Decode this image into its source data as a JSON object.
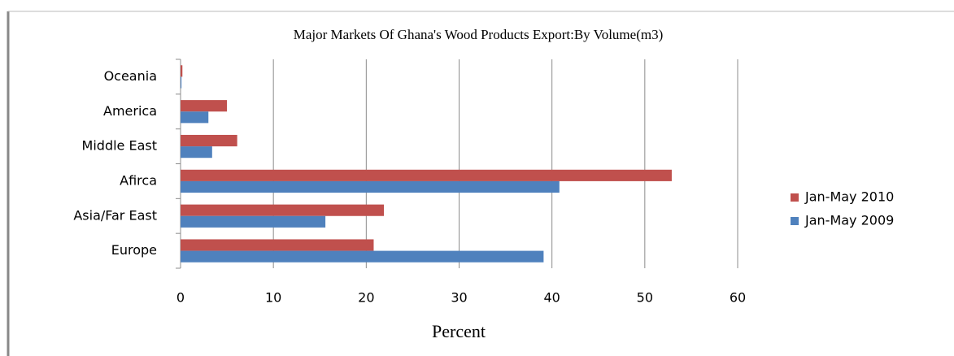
{
  "chart_data": {
    "type": "bar",
    "orientation": "horizontal",
    "title": "Major Markets Of Ghana's Wood Products Export:By Volume(m3)",
    "x_label": "Percent",
    "categories": [
      "Europe",
      "Asia/Far East",
      "Afirca",
      "Middle East",
      "America",
      "Oceania"
    ],
    "series": [
      {
        "name": "Jan-May 2010",
        "color": "#c0504d",
        "values": [
          20.8,
          21.9,
          52.9,
          6.1,
          5.0,
          0.2
        ]
      },
      {
        "name": "Jan-May 2009",
        "color": "#4f81bd",
        "values": [
          39.1,
          15.6,
          40.8,
          3.4,
          3.0,
          0.1
        ]
      }
    ],
    "xlim": [
      0,
      60
    ],
    "xticks": [
      0,
      10,
      20,
      30,
      40,
      50,
      60
    ],
    "grid": true,
    "legend": "right"
  }
}
